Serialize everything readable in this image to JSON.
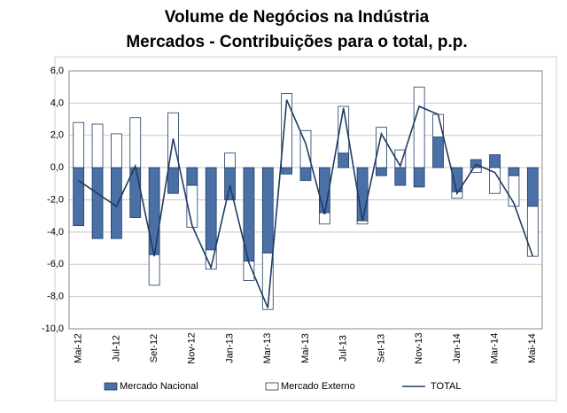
{
  "chart_data": {
    "type": "stacked-bar-line",
    "title": [
      "Volume de Negócios na Indústria",
      "Mercados - Contribuições para o total, p.p."
    ],
    "categories": [
      "Mai-12",
      null,
      "Jul-12",
      null,
      "Set-12",
      null,
      "Nov-12",
      null,
      "Jan-13",
      null,
      "Mar-13",
      null,
      "Mai-13",
      null,
      "Jul-13",
      null,
      "Set-13",
      null,
      "Nov-13",
      null,
      "Jan-14",
      null,
      "Mar-14",
      null,
      "Mai-14"
    ],
    "series": [
      {
        "name": "Mercado Nacional",
        "kind": "bar",
        "color": "#4a70a6",
        "values": [
          -3.6,
          -4.4,
          -4.4,
          -3.1,
          -5.4,
          -1.6,
          -1.1,
          -5.1,
          -2.0,
          -5.8,
          -5.3,
          -0.4,
          -0.8,
          -2.8,
          0.9,
          -3.3,
          -0.5,
          -1.1,
          -1.2,
          1.9,
          -1.5,
          0.5,
          0.8,
          -0.5,
          -2.4
        ]
      },
      {
        "name": "Mercado Externo",
        "kind": "bar",
        "color": "#ffffff",
        "values": [
          2.8,
          2.7,
          2.1,
          3.1,
          -1.9,
          3.4,
          -2.6,
          -1.2,
          0.9,
          -1.2,
          -3.5,
          4.6,
          2.3,
          -0.7,
          2.9,
          -0.2,
          2.5,
          1.1,
          5.0,
          1.4,
          -0.4,
          -0.3,
          -1.6,
          -1.9,
          -3.1
        ]
      },
      {
        "name": "TOTAL",
        "kind": "line",
        "color": "#1f3b63",
        "values": [
          -0.8,
          -1.6,
          -2.4,
          0.1,
          -5.5,
          1.8,
          -3.6,
          -6.2,
          -1.1,
          -5.9,
          -8.7,
          4.2,
          1.5,
          -2.9,
          3.7,
          -3.3,
          2.1,
          0.1,
          3.8,
          3.3,
          -1.6,
          0.2,
          -0.3,
          -2.2,
          -5.5
        ]
      }
    ],
    "ylim": [
      -10,
      6
    ],
    "yticks": [
      {
        "value": -10,
        "label": "-10,0"
      },
      {
        "value": -8,
        "label": "-8,0"
      },
      {
        "value": -6,
        "label": "-6,0"
      },
      {
        "value": -4,
        "label": "-4,0"
      },
      {
        "value": -2,
        "label": "-2,0"
      },
      {
        "value": 0,
        "label": "0,0"
      },
      {
        "value": 2,
        "label": "2,0"
      },
      {
        "value": 4,
        "label": "4,0"
      },
      {
        "value": 6,
        "label": "6,0"
      }
    ],
    "grid": true
  }
}
